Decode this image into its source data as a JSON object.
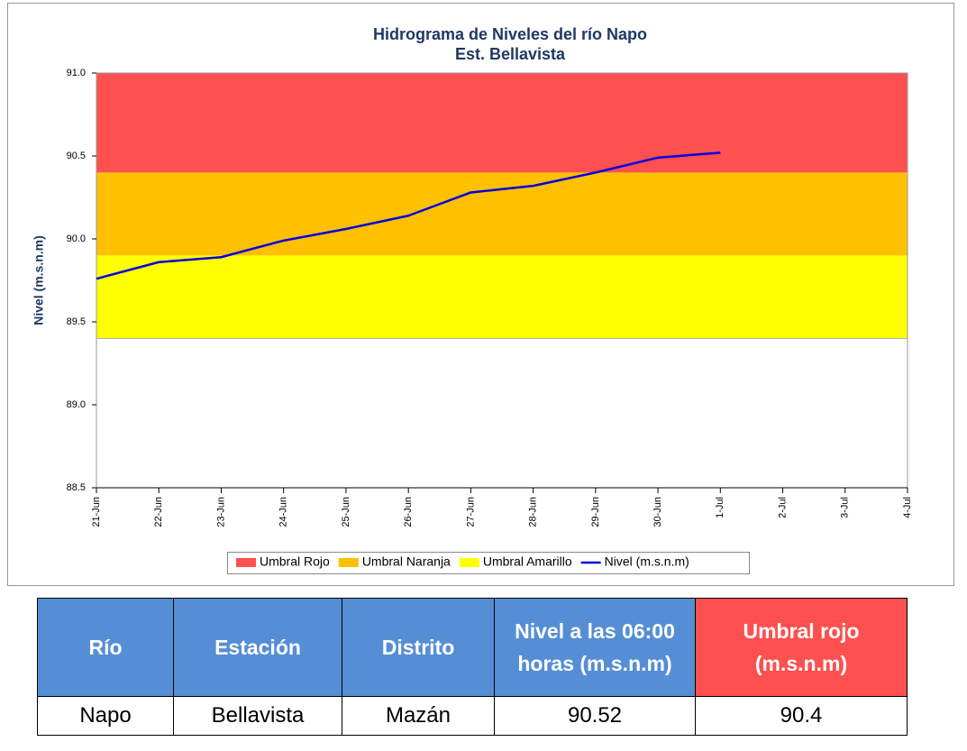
{
  "chart_data": {
    "type": "line",
    "title": "Hidrograma de Niveles del río Napo",
    "subtitle": "Est. Bellavista",
    "y_label": "Nivel (m.s.n.m)",
    "categories": [
      "21-Jun",
      "22-Jun",
      "23-Jun",
      "24-Jun",
      "25-Jun",
      "26-Jun",
      "27-Jun",
      "28-Jun",
      "29-Jun",
      "30-Jun",
      "1-Jul",
      "2-Jul",
      "3-Jul",
      "4-Jul"
    ],
    "bands": [
      {
        "name": "Umbral Rojo",
        "color": "#ff5050",
        "threshold": 90.4
      },
      {
        "name": "Umbral Naranja",
        "color": "#ffc000",
        "threshold": 89.9
      },
      {
        "name": "Umbral Amarillo",
        "color": "#ffff00",
        "threshold": 89.4
      }
    ],
    "series": [
      {
        "name": "Nivel (m.s.n.m)",
        "color": "#0000e0",
        "values": [
          89.76,
          89.86,
          89.89,
          89.99,
          90.06,
          90.14,
          90.28,
          90.32,
          90.4,
          90.49,
          90.52,
          null,
          null,
          null
        ]
      }
    ],
    "ylim": [
      88.5,
      91.0
    ],
    "yticks": [
      {
        "value": 88.5,
        "label": "88.5"
      },
      {
        "value": 89.0,
        "label": "89.0"
      },
      {
        "value": 89.5,
        "label": "89.5"
      },
      {
        "value": 90.0,
        "label": "90.0"
      },
      {
        "value": 90.5,
        "label": "90.5"
      },
      {
        "value": 91.0,
        "label": "91.0"
      }
    ],
    "legend": "bottom"
  },
  "table": {
    "header": [
      "Río",
      "Estación",
      "Distrito",
      "Nivel a las 06:00 horas (m.s.n.m)",
      "Umbral rojo (m.s.n.m)"
    ],
    "rows": [
      [
        "Napo",
        "Bellavista",
        "Mazán",
        "90.52",
        "90.4"
      ]
    ]
  }
}
